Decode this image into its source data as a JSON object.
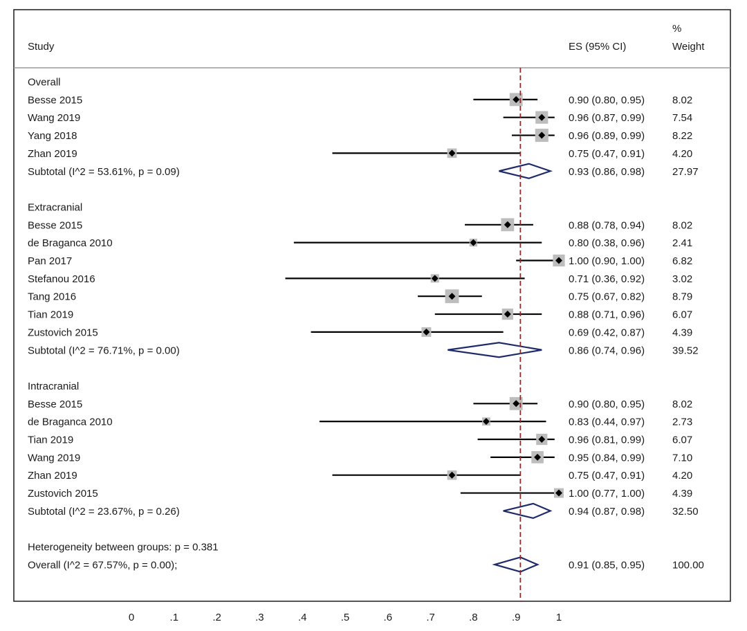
{
  "chart_data": {
    "type": "forest",
    "headers": {
      "study": "Study",
      "es": "ES (95% CI)",
      "weight_line1": "%",
      "weight_line2": "Weight"
    },
    "xlim": [
      0,
      1
    ],
    "xticks": [
      {
        "value": 0,
        "label": "0"
      },
      {
        "value": 0.1,
        "label": ".1"
      },
      {
        "value": 0.2,
        "label": ".2"
      },
      {
        "value": 0.3,
        "label": ".3"
      },
      {
        "value": 0.4,
        "label": ".4"
      },
      {
        "value": 0.5,
        "label": ".5"
      },
      {
        "value": 0.6,
        "label": ".6"
      },
      {
        "value": 0.7,
        "label": ".7"
      },
      {
        "value": 0.8,
        "label": ".8"
      },
      {
        "value": 0.9,
        "label": ".9"
      },
      {
        "value": 1.0,
        "label": "1"
      }
    ],
    "reference_line": 0.91,
    "groups": [
      {
        "name": "Overall",
        "studies": [
          {
            "label": "Besse 2015",
            "es": 0.9,
            "lo": 0.8,
            "hi": 0.95,
            "ci_text": "0.90 (0.80, 0.95)",
            "weight": "8.02"
          },
          {
            "label": "Wang 2019",
            "es": 0.96,
            "lo": 0.87,
            "hi": 0.99,
            "ci_text": "0.96 (0.87, 0.99)",
            "weight": "7.54"
          },
          {
            "label": "Yang 2018",
            "es": 0.96,
            "lo": 0.89,
            "hi": 0.99,
            "ci_text": "0.96 (0.89, 0.99)",
            "weight": "8.22"
          },
          {
            "label": "Zhan 2019",
            "es": 0.75,
            "lo": 0.47,
            "hi": 0.91,
            "ci_text": "0.75 (0.47, 0.91)",
            "weight": "4.20"
          }
        ],
        "subtotal": {
          "label": "Subtotal  (I^2 = 53.61%, p = 0.09)",
          "es": 0.93,
          "lo": 0.86,
          "hi": 0.98,
          "ci_text": "0.93 (0.86, 0.98)",
          "weight": "27.97"
        }
      },
      {
        "name": "Extracranial",
        "studies": [
          {
            "label": "Besse 2015",
            "es": 0.88,
            "lo": 0.78,
            "hi": 0.94,
            "ci_text": "0.88 (0.78, 0.94)",
            "weight": "8.02"
          },
          {
            "label": "de Braganca 2010",
            "es": 0.8,
            "lo": 0.38,
            "hi": 0.96,
            "ci_text": "0.80 (0.38, 0.96)",
            "weight": "2.41"
          },
          {
            "label": "Pan 2017",
            "es": 1.0,
            "lo": 0.9,
            "hi": 1.0,
            "ci_text": "1.00 (0.90, 1.00)",
            "weight": "6.82"
          },
          {
            "label": "Stefanou 2016",
            "es": 0.71,
            "lo": 0.36,
            "hi": 0.92,
            "ci_text": "0.71 (0.36, 0.92)",
            "weight": "3.02"
          },
          {
            "label": "Tang 2016",
            "es": 0.75,
            "lo": 0.67,
            "hi": 0.82,
            "ci_text": "0.75 (0.67, 0.82)",
            "weight": "8.79"
          },
          {
            "label": "Tian 2019",
            "es": 0.88,
            "lo": 0.71,
            "hi": 0.96,
            "ci_text": "0.88 (0.71, 0.96)",
            "weight": "6.07"
          },
          {
            "label": "Zustovich 2015",
            "es": 0.69,
            "lo": 0.42,
            "hi": 0.87,
            "ci_text": "0.69 (0.42, 0.87)",
            "weight": "4.39"
          }
        ],
        "subtotal": {
          "label": "Subtotal  (I^2 = 76.71%, p = 0.00)",
          "es": 0.86,
          "lo": 0.74,
          "hi": 0.96,
          "ci_text": "0.86 (0.74, 0.96)",
          "weight": "39.52"
        }
      },
      {
        "name": "Intracranial",
        "studies": [
          {
            "label": "Besse 2015",
            "es": 0.9,
            "lo": 0.8,
            "hi": 0.95,
            "ci_text": "0.90 (0.80, 0.95)",
            "weight": "8.02"
          },
          {
            "label": "de Braganca 2010",
            "es": 0.83,
            "lo": 0.44,
            "hi": 0.97,
            "ci_text": "0.83 (0.44, 0.97)",
            "weight": "2.73"
          },
          {
            "label": "Tian 2019",
            "es": 0.96,
            "lo": 0.81,
            "hi": 0.99,
            "ci_text": "0.96 (0.81, 0.99)",
            "weight": "6.07"
          },
          {
            "label": "Wang 2019",
            "es": 0.95,
            "lo": 0.84,
            "hi": 0.99,
            "ci_text": "0.95 (0.84, 0.99)",
            "weight": "7.10"
          },
          {
            "label": "Zhan 2019",
            "es": 0.75,
            "lo": 0.47,
            "hi": 0.91,
            "ci_text": "0.75 (0.47, 0.91)",
            "weight": "4.20"
          },
          {
            "label": "Zustovich 2015",
            "es": 1.0,
            "lo": 0.77,
            "hi": 1.0,
            "ci_text": "1.00 (0.77, 1.00)",
            "weight": "4.39"
          }
        ],
        "subtotal": {
          "label": "Subtotal  (I^2 = 23.67%, p = 0.26)",
          "es": 0.94,
          "lo": 0.87,
          "hi": 0.98,
          "ci_text": "0.94 (0.87, 0.98)",
          "weight": "32.50"
        }
      }
    ],
    "heterogeneity": "Heterogeneity between groups: p = 0.381",
    "overall": {
      "label": "Overall  (I^2 = 67.57%, p = 0.00);",
      "es": 0.91,
      "lo": 0.85,
      "hi": 0.95,
      "ci_text": "0.91 (0.85, 0.95)",
      "weight": "100.00"
    },
    "colors": {
      "frame": "#1a1a1a",
      "separator": "#9a9a9a",
      "box": "#bdbdbd",
      "diamond": "#1f2a6b",
      "reference": "#8b2a2a",
      "text": "#1a1a1a"
    }
  }
}
